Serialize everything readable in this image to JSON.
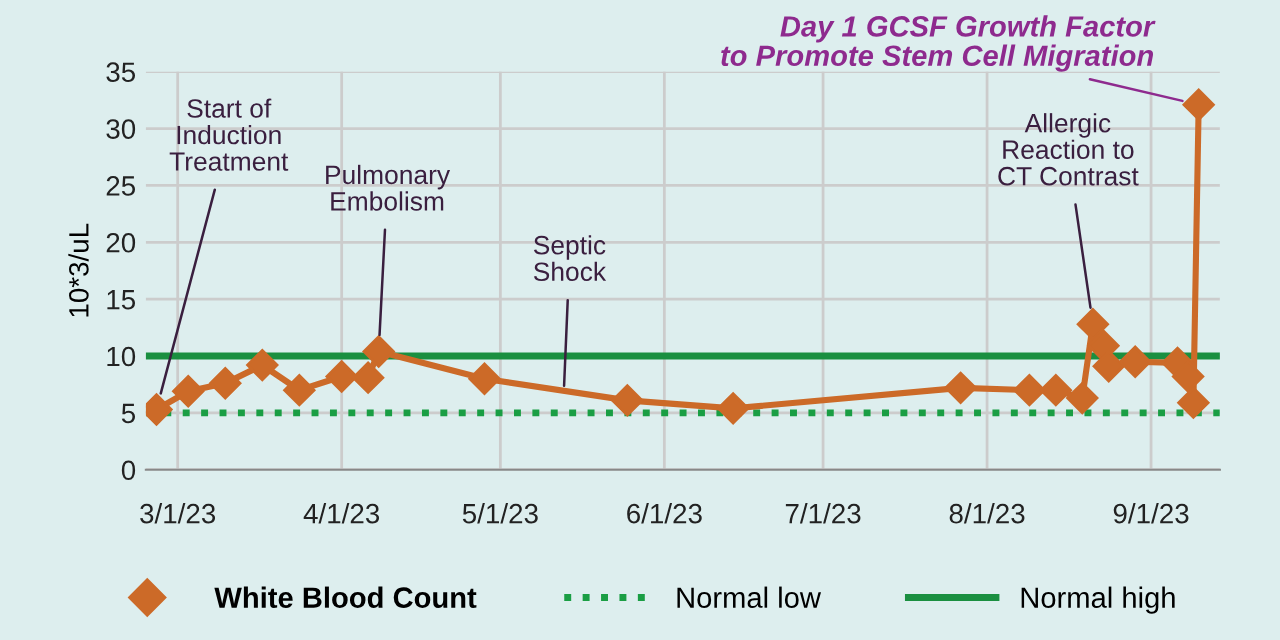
{
  "chart_data": {
    "type": "line",
    "ylabel": "10*3/uL",
    "x": [
      "2023-02-25",
      "2023-03-03",
      "2023-03-10",
      "2023-03-17",
      "2023-03-24",
      "2023-04-01",
      "2023-04-06",
      "2023-04-08",
      "2023-04-28",
      "2023-05-25",
      "2023-06-14",
      "2023-07-27",
      "2023-08-09",
      "2023-08-14",
      "2023-08-19",
      "2023-08-21",
      "2023-08-23",
      "2023-08-24",
      "2023-08-29",
      "2023-09-06",
      "2023-09-08",
      "2023-09-09",
      "2023-09-10"
    ],
    "series": [
      {
        "name": "White Blood Count",
        "color": "#cc6a28",
        "values": [
          5.3,
          6.9,
          7.6,
          9.2,
          7.0,
          8.2,
          8.1,
          10.4,
          8.0,
          6.1,
          5.4,
          7.2,
          7.0,
          7.0,
          6.3,
          12.8,
          10.9,
          9.1,
          9.5,
          9.4,
          8.2,
          5.9,
          32.1
        ]
      }
    ],
    "marker": "diamond",
    "line_style": "solid",
    "xlim": [
      "2023-02-23",
      "2023-09-14"
    ],
    "xticks": [
      {
        "value": "2023-03-01",
        "label": "3/1/23"
      },
      {
        "value": "2023-04-01",
        "label": "4/1/23"
      },
      {
        "value": "2023-05-01",
        "label": "5/1/23"
      },
      {
        "value": "2023-06-01",
        "label": "6/1/23"
      },
      {
        "value": "2023-07-01",
        "label": "7/1/23"
      },
      {
        "value": "2023-08-01",
        "label": "8/1/23"
      },
      {
        "value": "2023-09-01",
        "label": "9/1/23"
      }
    ],
    "ylim": [
      0,
      35
    ],
    "yticks": [
      0,
      5,
      10,
      15,
      20,
      25,
      30,
      35
    ],
    "grid": true,
    "ref_lines": [
      {
        "axis": "y",
        "value": 5,
        "label": "Normal low",
        "color": "#1a9e44",
        "line_style": "dotted"
      },
      {
        "axis": "y",
        "value": 10,
        "label": "Normal high",
        "color": "#1a8f40",
        "line_style": "solid"
      }
    ],
    "annotations": [
      {
        "text": "Start of\nInduction\nTreatment",
        "x": "2023-02-25",
        "y": 5.3
      },
      {
        "text": "Pulmonary\nEmbolism",
        "x": "2023-04-08",
        "y": 10.4
      },
      {
        "text": "Septic\nShock",
        "x": "2023-05-13",
        "y": 6.9
      },
      {
        "text": "Allergic\nReaction to\nCT Contrast",
        "x": "2023-08-21",
        "y": 12.8
      },
      {
        "text": "Day 1 GCSF Growth Factor\nto Promote Stem Cell Migration",
        "x": "2023-09-10",
        "y": 32.1
      }
    ],
    "legend": "bottom"
  }
}
